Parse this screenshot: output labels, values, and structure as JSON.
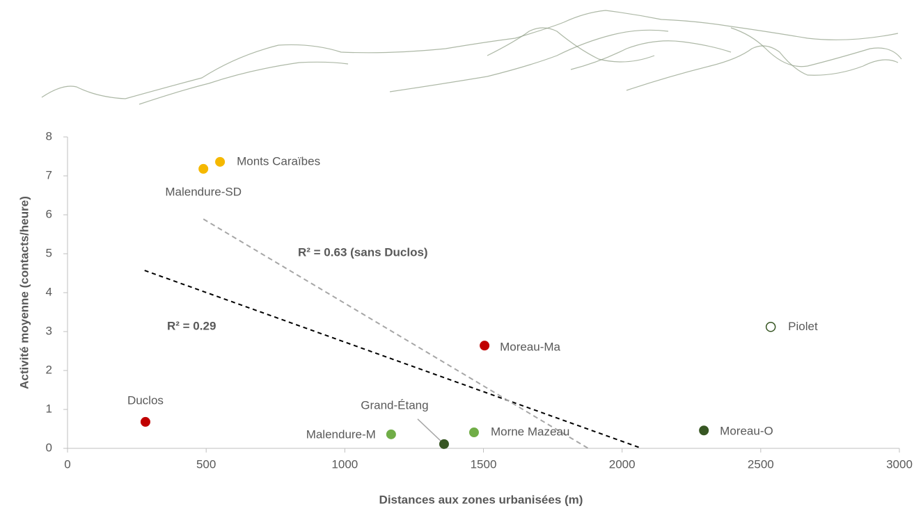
{
  "chart_data": {
    "type": "scatter",
    "x_label": "Distances aux zones urbanisées (m)",
    "y_label": "Activité moyenne (contacts/heure)",
    "xlim": [
      0,
      3000
    ],
    "xticks": [
      0,
      500,
      1000,
      1500,
      2000,
      2500,
      3000
    ],
    "ylim": [
      0,
      8
    ],
    "yticks": [
      0,
      1,
      2,
      3,
      4,
      5,
      6,
      7,
      8
    ],
    "grid": false,
    "series": [
      {
        "name": "Monts Caraïbes",
        "color": "#f5b800",
        "x": [
          550
        ],
        "values": [
          7.36
        ]
      },
      {
        "name": "Malendure-SD",
        "color": "#f5b800",
        "x": [
          490
        ],
        "values": [
          7.18
        ]
      },
      {
        "name": "Duclos",
        "color": "#c00000",
        "x": [
          281
        ],
        "values": [
          0.68
        ]
      },
      {
        "name": "Moreau-Ma",
        "color": "#c00000",
        "x": [
          1504
        ],
        "values": [
          2.64
        ]
      },
      {
        "name": "Piolet",
        "color": "#375623",
        "x": [
          2536
        ],
        "values": [
          3.12
        ],
        "marker": "open"
      },
      {
        "name": "Moreau-O",
        "color": "#375623",
        "x": [
          2295
        ],
        "values": [
          0.46
        ]
      },
      {
        "name": "Morne Mazeau",
        "color": "#70ad47",
        "x": [
          1466
        ],
        "values": [
          0.41
        ]
      },
      {
        "name": "Malendure-M",
        "color": "#70ad47",
        "x": [
          1167
        ],
        "values": [
          0.36
        ]
      },
      {
        "name": "Grand-Étang",
        "color": "#375623",
        "x": [
          1358
        ],
        "values": [
          0.11
        ]
      }
    ],
    "trendlines": [
      {
        "color": "#000000",
        "x": [
          278,
          2071
        ],
        "values": [
          4.57,
          0
        ]
      },
      {
        "color": "#a6a6a6",
        "x": [
          490,
          1878
        ],
        "values": [
          5.89,
          0
        ]
      }
    ],
    "annotations": [
      {
        "text": "R² = 0.29",
        "color": "#595959"
      },
      {
        "text": "R² = 0.63 (sans Duclos)",
        "color": "#a6a6a6"
      }
    ]
  }
}
